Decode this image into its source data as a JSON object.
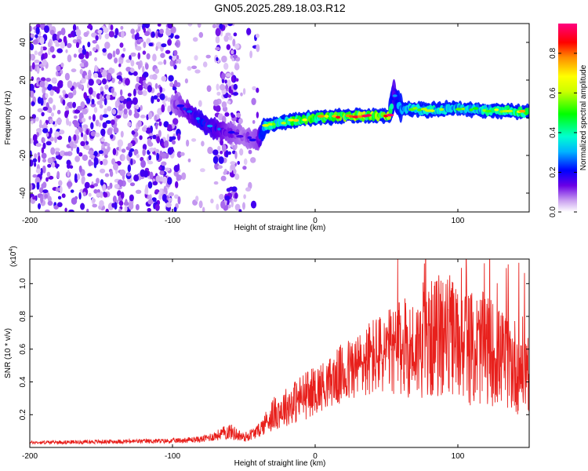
{
  "title": "GN05.2025.289.18.03.R12",
  "colors": {
    "snr_line": "#e8201c",
    "axis": "#000000",
    "background": "#ffffff"
  },
  "chart_data": [
    {
      "type": "heatmap",
      "name": "spectrogram",
      "xlabel": "Height of straight line (km)",
      "ylabel": "Frequency (Hz)",
      "xlim": [
        -200,
        150
      ],
      "ylim": [
        -50,
        50
      ],
      "xticks": [
        -200,
        -100,
        0,
        100
      ],
      "yticks": [
        -40,
        -20,
        0,
        20,
        40
      ],
      "colorbar": {
        "label": "Normalized spectral amplitude",
        "range": [
          0,
          0.95
        ],
        "ticks": [
          0.0,
          0.2,
          0.4,
          0.6,
          0.8
        ]
      },
      "ridge": {
        "description_points_x": [
          -100,
          -90,
          -80,
          -70,
          -60,
          -50,
          -40,
          -35,
          -20,
          0,
          20,
          40,
          52,
          55,
          60,
          80,
          100,
          120,
          150
        ],
        "frequency_hz": [
          8,
          4,
          -2,
          -6,
          -8,
          -10,
          -12,
          -4,
          -2,
          0,
          1,
          1,
          1,
          12,
          5,
          4,
          5,
          4,
          3
        ],
        "amplitude": [
          0.15,
          0.25,
          0.35,
          0.3,
          0.2,
          0.15,
          0.2,
          0.6,
          0.7,
          0.8,
          0.85,
          0.9,
          0.9,
          0.3,
          0.5,
          0.6,
          0.55,
          0.6,
          0.8
        ]
      },
      "noise_region_x": [
        -200,
        -40
      ]
    },
    {
      "type": "line",
      "name": "snr",
      "xlabel": "Height of straight line (km)",
      "ylabel": "SNR (10 * v/v)",
      "scale_label": "(x10",
      "scale_exponent": "4",
      "scale_suffix": ")",
      "xlim": [
        -200,
        150
      ],
      "ylim": [
        0,
        1.15
      ],
      "xticks": [
        -200,
        -100,
        0,
        100
      ],
      "yticks": [
        0.2,
        0.4,
        0.6,
        0.8,
        1.0
      ],
      "envelope": {
        "x": [
          -200,
          -100,
          -80,
          -70,
          -60,
          -50,
          -40,
          -30,
          -20,
          -10,
          0,
          10,
          20,
          30,
          40,
          50,
          60,
          70,
          80,
          90,
          100,
          110,
          120,
          130,
          140,
          150
        ],
        "level": [
          0.03,
          0.04,
          0.05,
          0.07,
          0.1,
          0.06,
          0.1,
          0.2,
          0.25,
          0.3,
          0.35,
          0.4,
          0.45,
          0.5,
          0.55,
          0.58,
          0.6,
          0.6,
          0.65,
          0.7,
          0.65,
          0.6,
          0.6,
          0.55,
          0.5,
          0.5
        ],
        "spread": [
          0.01,
          0.015,
          0.02,
          0.03,
          0.05,
          0.03,
          0.04,
          0.1,
          0.12,
          0.15,
          0.15,
          0.15,
          0.2,
          0.2,
          0.25,
          0.25,
          0.3,
          0.3,
          0.35,
          0.4,
          0.35,
          0.35,
          0.35,
          0.3,
          0.3,
          0.3
        ]
      }
    }
  ]
}
